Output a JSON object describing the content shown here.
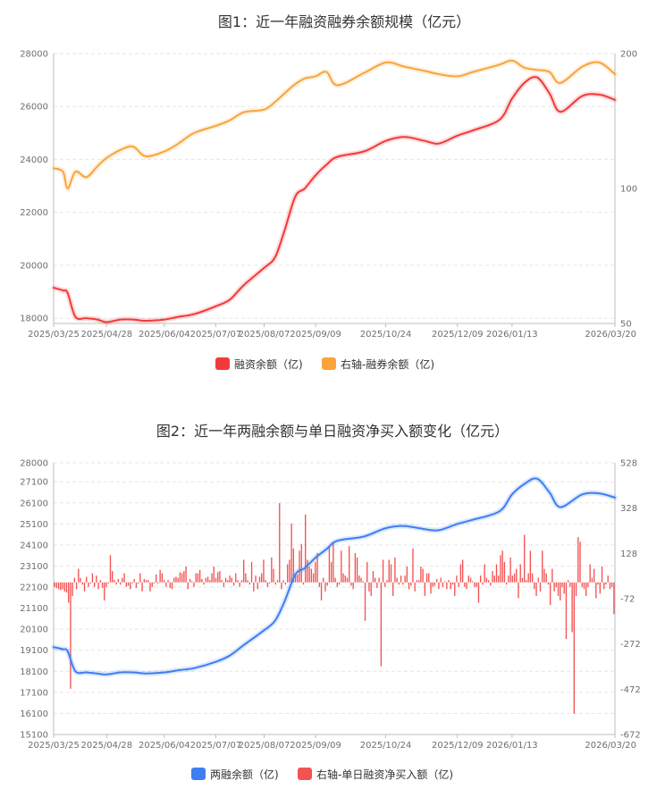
{
  "chart_data": [
    {
      "type": "line",
      "title": "图1：近一年融资融券余额规模（亿元）",
      "x_ticks": [
        "2025/03/25",
        "2025/04/28",
        "2025/06/04",
        "2025/07/07",
        "2025/08/07",
        "2025/09/09",
        "2025/10/24",
        "2025/12/09",
        "2026/01/13",
        "2026/03/20"
      ],
      "y_left": {
        "ticks": [
          18000,
          20000,
          22000,
          24000,
          26000,
          28000
        ],
        "ylim": [
          17800,
          28000
        ]
      },
      "y_right": {
        "ticks": [
          50,
          100,
          200
        ],
        "scale": "log",
        "ylim": [
          50,
          200
        ]
      },
      "grid": true,
      "legend_position": "bottom",
      "series": [
        {
          "name": "融资余额（亿)",
          "axis": "left",
          "color": "#f23a3a",
          "x": [
            "2025/03/25",
            "2025/03/31",
            "2025/04/03",
            "2025/04/08",
            "2025/04/15",
            "2025/04/22",
            "2025/04/28",
            "2025/05/07",
            "2025/05/15",
            "2025/05/23",
            "2025/06/04",
            "2025/06/13",
            "2025/06/23",
            "2025/07/07",
            "2025/07/16",
            "2025/07/25",
            "2025/08/07",
            "2025/08/14",
            "2025/08/20",
            "2025/08/27",
            "2025/09/02",
            "2025/09/09",
            "2025/09/16",
            "2025/09/23",
            "2025/10/10",
            "2025/10/24",
            "2025/11/05",
            "2025/11/18",
            "2025/11/27",
            "2025/12/09",
            "2025/12/19",
            "2026/01/05",
            "2026/01/13",
            "2026/01/21",
            "2026/01/29",
            "2026/02/06",
            "2026/02/13",
            "2026/02/27",
            "2026/03/10",
            "2026/03/20"
          ],
          "values": [
            19150,
            19050,
            18950,
            18050,
            18000,
            17950,
            17850,
            17950,
            17950,
            17900,
            17950,
            18050,
            18150,
            18450,
            18700,
            19250,
            19900,
            20300,
            21300,
            22600,
            22900,
            23400,
            23800,
            24100,
            24300,
            24700,
            24850,
            24700,
            24600,
            24900,
            25100,
            25500,
            26300,
            26900,
            27100,
            26500,
            25800,
            26400,
            26450,
            26250
          ]
        },
        {
          "name": "右轴-融券余额（亿)",
          "axis": "right",
          "color": "#f9a43b",
          "x": [
            "2025/03/25",
            "2025/03/31",
            "2025/04/03",
            "2025/04/08",
            "2025/04/15",
            "2025/04/22",
            "2025/04/28",
            "2025/05/07",
            "2025/05/15",
            "2025/05/23",
            "2025/06/04",
            "2025/06/13",
            "2025/06/23",
            "2025/07/07",
            "2025/07/16",
            "2025/07/25",
            "2025/08/07",
            "2025/08/14",
            "2025/08/20",
            "2025/08/27",
            "2025/09/02",
            "2025/09/09",
            "2025/09/16",
            "2025/09/23",
            "2025/10/10",
            "2025/10/24",
            "2025/11/05",
            "2025/11/18",
            "2025/11/27",
            "2025/12/09",
            "2025/12/19",
            "2026/01/05",
            "2026/01/13",
            "2026/01/21",
            "2026/01/29",
            "2026/02/06",
            "2026/02/13",
            "2026/02/27",
            "2026/03/10",
            "2026/03/20"
          ],
          "values": [
            111,
            109,
            100,
            109,
            106,
            112,
            117,
            122,
            124,
            118,
            121,
            126,
            133,
            138,
            142,
            148,
            150,
            156,
            163,
            171,
            176,
            178,
            182,
            170,
            181,
            191,
            187,
            183,
            180,
            178,
            182,
            189,
            193,
            186,
            184,
            182,
            172,
            187,
            191,
            180
          ]
        }
      ]
    },
    {
      "type": "line+bar",
      "title": "图2：近一年两融余额与单日融资净买入额变化（亿元）",
      "x_ticks": [
        "2025/03/25",
        "2025/04/28",
        "2025/06/04",
        "2025/07/07",
        "2025/08/07",
        "2025/09/09",
        "2025/10/24",
        "2025/12/09",
        "2026/01/13",
        "2026/03/20"
      ],
      "y_left": {
        "ticks": [
          15100,
          16100,
          17100,
          18100,
          19100,
          20100,
          21100,
          22100,
          23100,
          24100,
          25100,
          26100,
          27100,
          28000
        ],
        "ylim": [
          15100,
          28000
        ]
      },
      "y_right": {
        "ticks": [
          -672,
          -472,
          -272,
          -72,
          128,
          328,
          528
        ],
        "ylim": [
          -672,
          528
        ]
      },
      "grid": true,
      "legend_position": "bottom",
      "series": [
        {
          "name": "两融余额（亿)",
          "axis": "left",
          "type": "line",
          "color": "#3f7ef2",
          "x": [
            "2025/03/25",
            "2025/03/31",
            "2025/04/03",
            "2025/04/08",
            "2025/04/15",
            "2025/04/22",
            "2025/04/28",
            "2025/05/07",
            "2025/05/15",
            "2025/05/23",
            "2025/06/04",
            "2025/06/13",
            "2025/06/23",
            "2025/07/07",
            "2025/07/16",
            "2025/07/25",
            "2025/08/07",
            "2025/08/14",
            "2025/08/20",
            "2025/08/27",
            "2025/09/02",
            "2025/09/09",
            "2025/09/16",
            "2025/09/23",
            "2025/10/10",
            "2025/10/24",
            "2025/11/05",
            "2025/11/18",
            "2025/11/27",
            "2025/12/09",
            "2025/12/19",
            "2026/01/05",
            "2026/01/13",
            "2026/01/21",
            "2026/01/29",
            "2026/02/06",
            "2026/02/13",
            "2026/02/27",
            "2026/03/10",
            "2026/03/20"
          ],
          "values": [
            19250,
            19150,
            19050,
            18100,
            18050,
            18000,
            17950,
            18050,
            18050,
            18000,
            18050,
            18150,
            18250,
            18550,
            18850,
            19350,
            20050,
            20500,
            21400,
            22700,
            23000,
            23500,
            23900,
            24300,
            24500,
            24900,
            25000,
            24850,
            24800,
            25100,
            25300,
            25700,
            26500,
            27000,
            27250,
            26600,
            25900,
            26500,
            26550,
            26350
          ]
        },
        {
          "name": "右轴-单日融资净买入额（亿)",
          "axis": "right",
          "type": "bar",
          "color": "#f25252",
          "values": [
            -20,
            -25,
            -30,
            -35,
            -30,
            -40,
            -45,
            -90,
            -470,
            -60,
            20,
            -30,
            60,
            20,
            -10,
            -40,
            25,
            -20,
            -5,
            40,
            -20,
            30,
            -30,
            10,
            -25,
            -80,
            -20,
            -5,
            120,
            50,
            10,
            -10,
            15,
            -10,
            20,
            40,
            -20,
            -15,
            -30,
            -5,
            15,
            -25,
            -5,
            40,
            -40,
            15,
            10,
            10,
            -40,
            -20,
            -5,
            35,
            -5,
            55,
            40,
            10,
            -20,
            10,
            -25,
            -30,
            20,
            25,
            20,
            45,
            40,
            50,
            70,
            -30,
            15,
            5,
            -20,
            40,
            40,
            55,
            15,
            -10,
            20,
            25,
            10,
            40,
            70,
            20,
            45,
            50,
            10,
            -20,
            20,
            10,
            30,
            20,
            -15,
            40,
            10,
            -20,
            10,
            100,
            40,
            10,
            -10,
            90,
            -40,
            30,
            -30,
            25,
            40,
            100,
            10,
            -20,
            -5,
            110,
            60,
            -10,
            10,
            350,
            -30,
            10,
            -10,
            80,
            100,
            260,
            150,
            40,
            35,
            140,
            170,
            -10,
            300,
            100,
            70,
            60,
            40,
            90,
            130,
            -20,
            -80,
            20,
            -40,
            -15,
            160,
            90,
            180,
            20,
            -20,
            -10,
            140,
            40,
            30,
            20,
            160,
            -15,
            -30,
            130,
            110,
            30,
            20,
            5,
            -170,
            90,
            -40,
            -60,
            50,
            20,
            -25,
            20,
            -370,
            100,
            -20,
            10,
            100,
            80,
            -60,
            110,
            20,
            -10,
            30,
            -10,
            30,
            70,
            -30,
            -15,
            150,
            -40,
            10,
            10,
            70,
            60,
            -60,
            40,
            40,
            -50,
            -20,
            -15,
            15,
            -30,
            20,
            -20,
            5,
            -30,
            10,
            -30,
            -10,
            -60,
            30,
            -20,
            80,
            100,
            -20,
            -30,
            30,
            20,
            5,
            -20,
            -20,
            -90,
            30,
            -10,
            80,
            20,
            10,
            -15,
            50,
            30,
            80,
            30,
            120,
            140,
            90,
            -10,
            30,
            110,
            30,
            40,
            60,
            -70,
            80,
            20,
            210,
            10,
            40,
            140,
            40,
            -30,
            -60,
            20,
            -40,
            140,
            60,
            40,
            -10,
            -100,
            60,
            -40,
            -20,
            -60,
            -80,
            -20,
            -50,
            -250,
            10,
            -20,
            -220,
            -580,
            -60,
            200,
            180,
            -20,
            -30,
            -60,
            -20,
            80,
            20,
            60,
            -70,
            -10,
            -50,
            70,
            -30,
            -10,
            30,
            -30,
            -20,
            -140
          ]
        }
      ]
    }
  ]
}
